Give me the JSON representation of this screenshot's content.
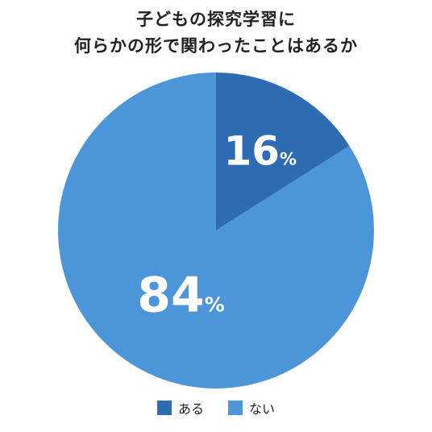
{
  "title_lines": [
    "子どもの探究学習に",
    "何らかの形で関わったことはあるか"
  ],
  "colors": {
    "aru": "#2d6bb3",
    "nai": "#4c95d9"
  },
  "chart_data": {
    "type": "pie",
    "title": "子どもの探究学習に何らかの形で関わったことはあるか",
    "labels": [
      "ある",
      "ない"
    ],
    "values": [
      16,
      84
    ],
    "value_labels": [
      "16",
      "84"
    ],
    "unit": "%",
    "legend_position": "bottom"
  },
  "legend": [
    {
      "label": "ある",
      "color": "#2d6bb3"
    },
    {
      "label": "ない",
      "color": "#4c95d9"
    }
  ]
}
